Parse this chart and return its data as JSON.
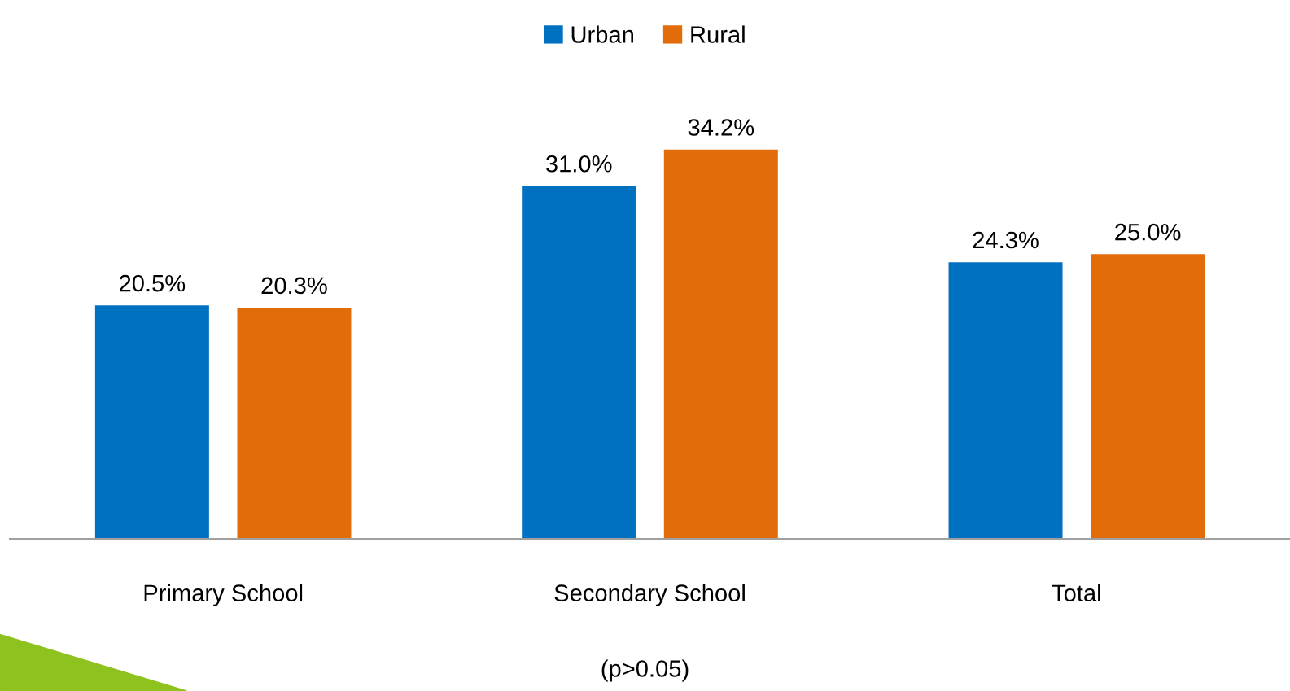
{
  "chart_data": {
    "type": "bar",
    "categories": [
      "Primary School",
      "Secondary School",
      "Total"
    ],
    "series": [
      {
        "name": "Urban",
        "color": "#0070c0",
        "values": [
          20.5,
          31.0,
          24.3
        ],
        "value_labels": [
          "20.5%",
          "31.0%",
          "24.3%"
        ]
      },
      {
        "name": "Rural",
        "color": "#e36c0a",
        "values": [
          20.3,
          34.2,
          25.0
        ],
        "value_labels": [
          "20.3%",
          "34.2%",
          "25.0%"
        ]
      }
    ],
    "legend": "top",
    "tick_labels": "x",
    "annotations": [
      "(p>0.05)"
    ]
  }
}
